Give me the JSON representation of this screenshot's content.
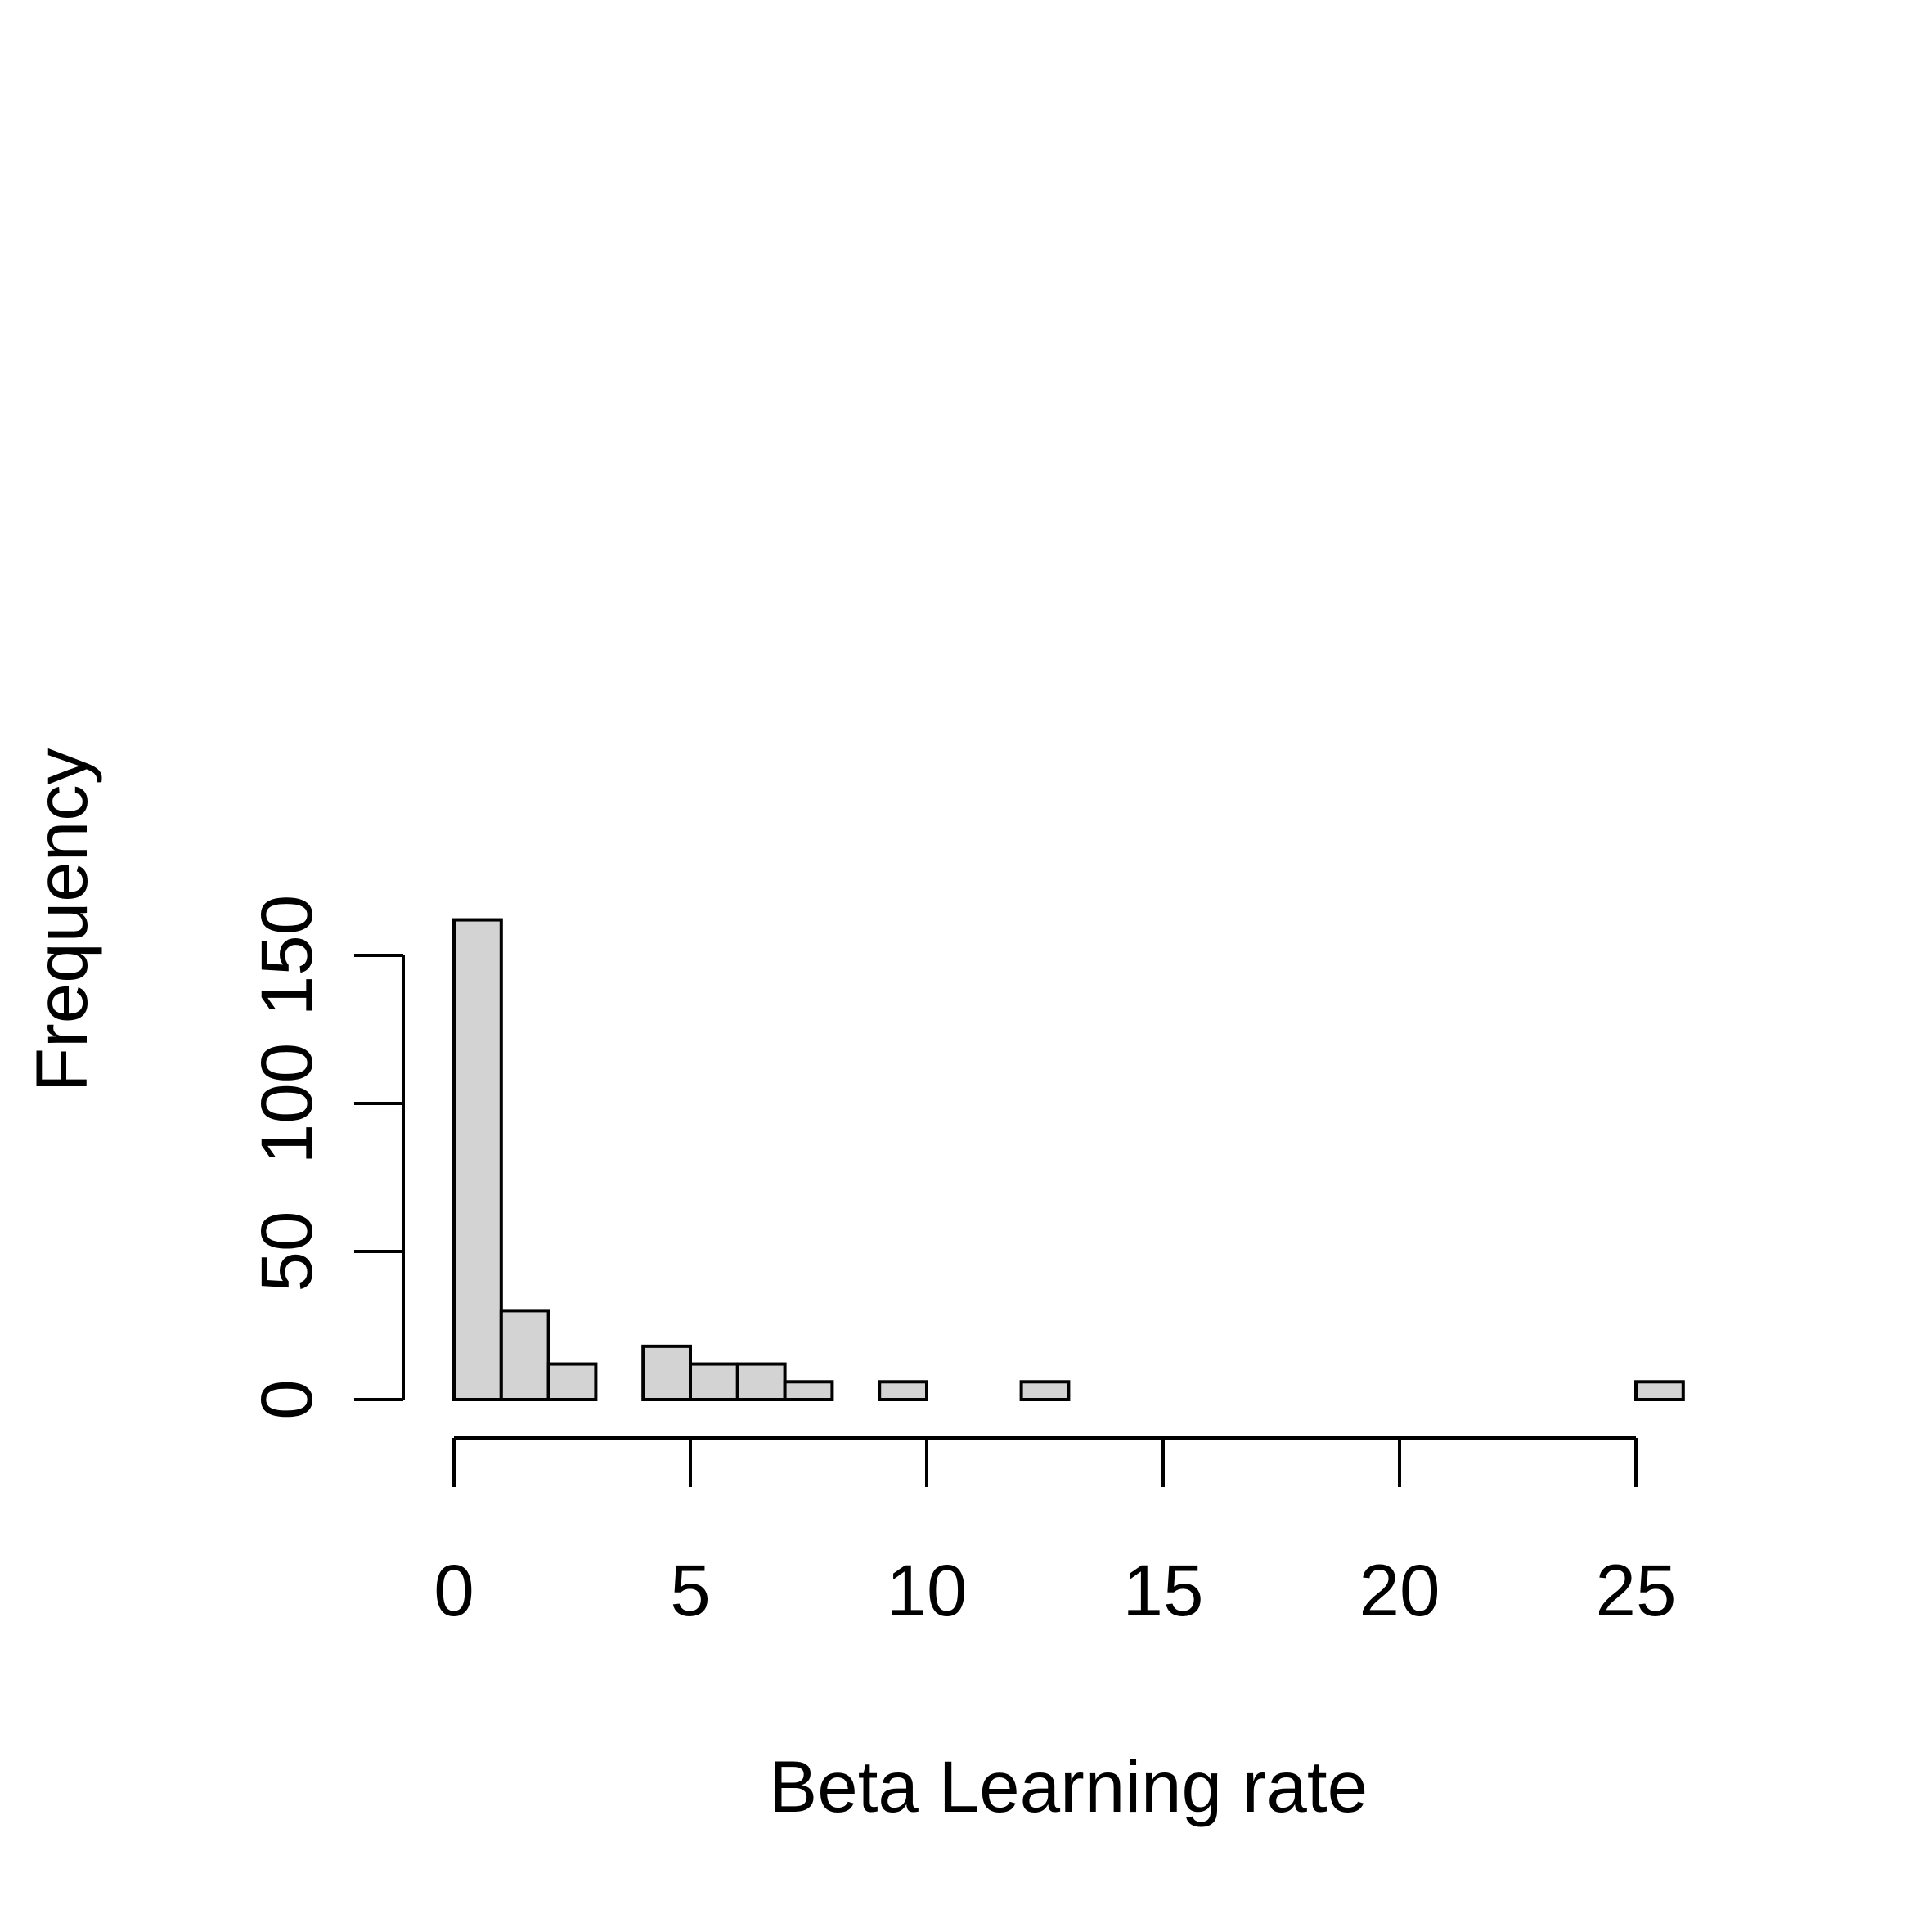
{
  "chart_data": {
    "type": "bar",
    "subtype": "histogram",
    "title": "",
    "xlabel": "Beta Learning rate",
    "ylabel": "Frequency",
    "bin_width": 1,
    "bins": [
      {
        "start": 0,
        "end": 1,
        "count": 162
      },
      {
        "start": 1,
        "end": 2,
        "count": 30
      },
      {
        "start": 2,
        "end": 3,
        "count": 12
      },
      {
        "start": 3,
        "end": 4,
        "count": 0
      },
      {
        "start": 4,
        "end": 5,
        "count": 18
      },
      {
        "start": 5,
        "end": 6,
        "count": 12
      },
      {
        "start": 6,
        "end": 7,
        "count": 12
      },
      {
        "start": 7,
        "end": 8,
        "count": 6
      },
      {
        "start": 8,
        "end": 9,
        "count": 0
      },
      {
        "start": 9,
        "end": 10,
        "count": 6
      },
      {
        "start": 10,
        "end": 11,
        "count": 0
      },
      {
        "start": 11,
        "end": 12,
        "count": 0
      },
      {
        "start": 12,
        "end": 13,
        "count": 6
      },
      {
        "start": 13,
        "end": 14,
        "count": 0
      },
      {
        "start": 14,
        "end": 15,
        "count": 0
      },
      {
        "start": 15,
        "end": 16,
        "count": 0
      },
      {
        "start": 16,
        "end": 17,
        "count": 0
      },
      {
        "start": 17,
        "end": 18,
        "count": 0
      },
      {
        "start": 18,
        "end": 19,
        "count": 0
      },
      {
        "start": 19,
        "end": 20,
        "count": 0
      },
      {
        "start": 20,
        "end": 21,
        "count": 0
      },
      {
        "start": 21,
        "end": 22,
        "count": 0
      },
      {
        "start": 22,
        "end": 23,
        "count": 0
      },
      {
        "start": 23,
        "end": 24,
        "count": 0
      },
      {
        "start": 24,
        "end": 25,
        "count": 0
      },
      {
        "start": 25,
        "end": 26,
        "count": 6
      }
    ],
    "xlim": [
      0,
      26
    ],
    "ylim": [
      0,
      162
    ],
    "x_ticks": [
      0,
      5,
      10,
      15,
      20,
      25
    ],
    "x_tick_labels": [
      "0",
      "5",
      "10",
      "15",
      "20",
      "25"
    ],
    "y_ticks": [
      0,
      50,
      100,
      150
    ],
    "y_tick_labels": [
      "0",
      "50",
      "100",
      "150"
    ],
    "grid": false,
    "legend": "none",
    "colors": {
      "bar_fill": "#d3d3d3",
      "bar_stroke": "#000000",
      "axis": "#000000",
      "background": "#ffffff"
    }
  }
}
